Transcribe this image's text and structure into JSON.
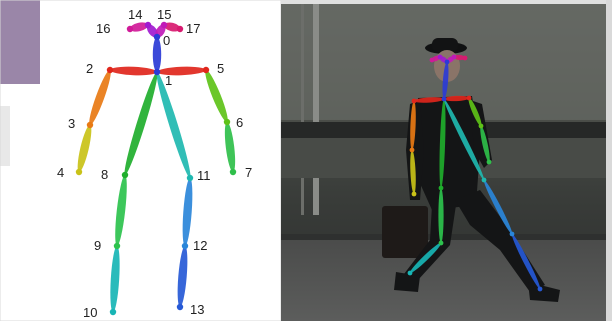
{
  "panels": {
    "left": {
      "name": "skeleton-diagram"
    },
    "right": {
      "name": "walking-person-photo"
    }
  },
  "keypoints": [
    {
      "id": "0",
      "label": "0"
    },
    {
      "id": "1",
      "label": "1"
    },
    {
      "id": "2",
      "label": "2"
    },
    {
      "id": "3",
      "label": "3"
    },
    {
      "id": "4",
      "label": "4"
    },
    {
      "id": "5",
      "label": "5"
    },
    {
      "id": "6",
      "label": "6"
    },
    {
      "id": "7",
      "label": "7"
    },
    {
      "id": "8",
      "label": "8"
    },
    {
      "id": "9",
      "label": "9"
    },
    {
      "id": "10",
      "label": "10"
    },
    {
      "id": "11",
      "label": "11"
    },
    {
      "id": "12",
      "label": "12"
    },
    {
      "id": "13",
      "label": "13"
    },
    {
      "id": "14",
      "label": "14"
    },
    {
      "id": "15",
      "label": "15"
    },
    {
      "id": "16",
      "label": "16"
    },
    {
      "id": "17",
      "label": "17"
    }
  ],
  "limb_colors": {
    "neck": "#2b3bd6",
    "right_shoulder": "#e0261c",
    "left_shoulder": "#e0261c",
    "right_upper_arm": "#e87a14",
    "right_forearm": "#c9c218",
    "left_upper_arm": "#5ec218",
    "left_forearm": "#2fbf4a",
    "right_torso": "#1fae2c",
    "right_thigh": "#2dc24d",
    "right_shin": "#18b5b5",
    "left_torso": "#1fb8b0",
    "left_thigh": "#2a86d9",
    "left_shin": "#2659d6",
    "head_right_eye": "#a01ad0",
    "head_left_eye": "#c01ab8",
    "head_right_ear": "#d01a98",
    "head_left_ear": "#d81a70"
  }
}
